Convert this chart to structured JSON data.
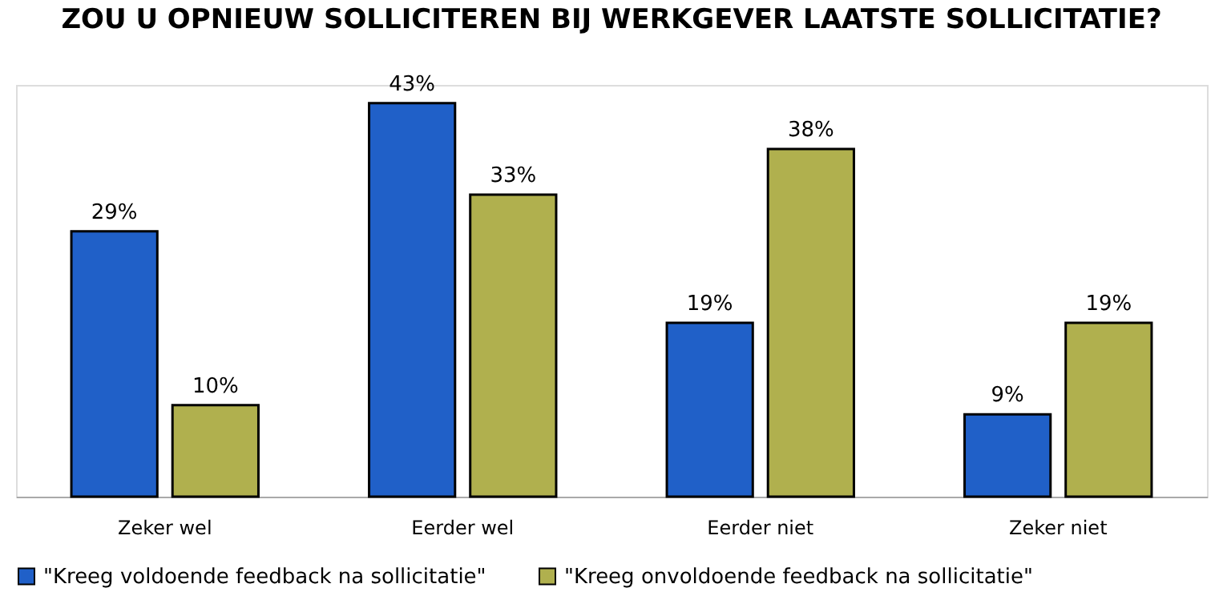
{
  "chart_data": {
    "type": "bar",
    "title": "ZOU U OPNIEUW SOLLICITEREN BIJ WERKGEVER LAATSTE SOLLICITATIE?",
    "categories": [
      "Zeker wel",
      "Eerder wel",
      "Eerder niet",
      "Zeker niet"
    ],
    "series": [
      {
        "name": "\"Kreeg voldoende feedback na sollicitatie\"",
        "color": "#2060c8",
        "values": [
          29,
          43,
          19,
          9
        ],
        "value_labels": [
          "29%",
          "43%",
          "19%",
          "9%"
        ]
      },
      {
        "name": "\"Kreeg onvoldoende feedback na sollicitatie\"",
        "color": "#b0b04e",
        "values": [
          10,
          33,
          38,
          19
        ],
        "value_labels": [
          "10%",
          "33%",
          "38%",
          "19%"
        ]
      }
    ],
    "legend": "bottom"
  }
}
